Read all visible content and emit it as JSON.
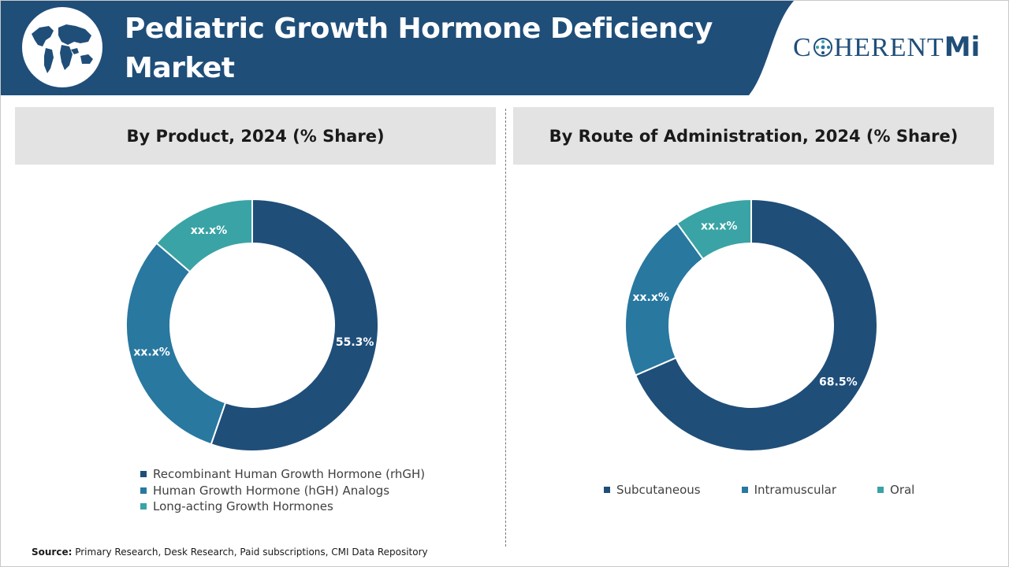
{
  "header": {
    "title_line1": "Pediatric Growth Hormone Deficiency",
    "title_line2": "Market",
    "logo_left": "C",
    "logo_right": "HERENT",
    "logo_mi": "Mi"
  },
  "colors": {
    "header_blue": "#1f4e79",
    "dark_navy": "#1f4e79",
    "medium_blue": "#2878a0",
    "teal": "#3aa3a5",
    "panel_bg": "#e3e3e3"
  },
  "chart_data": [
    {
      "type": "pie",
      "donut": true,
      "title": "By Product, 2024 (% Share)",
      "categories": [
        "Recombinant Human Growth Hormone (rhGH)",
        "Human Growth Hormone (hGH) Analogs",
        "Long-acting Growth Hormones"
      ],
      "values": [
        55.3,
        31.0,
        13.7
      ],
      "labels": [
        "55.3%",
        "xx.x%",
        "xx.x%"
      ],
      "colors": [
        "#1f4e79",
        "#2878a0",
        "#3aa3a5"
      ],
      "legend": "bottom"
    },
    {
      "type": "pie",
      "donut": true,
      "title": "By Route of Administration, 2024 (% Share)",
      "categories": [
        "Subcutaneous",
        "Intramuscular",
        "Oral"
      ],
      "values": [
        68.5,
        21.5,
        10.0
      ],
      "labels": [
        "68.5%",
        "xx.x%",
        "xx.x%"
      ],
      "colors": [
        "#1f4e79",
        "#2878a0",
        "#3aa3a5"
      ],
      "legend": "bottom"
    }
  ],
  "source": {
    "label": "Source:",
    "text": " Primary Research, Desk Research, Paid subscriptions, CMI Data Repository"
  }
}
